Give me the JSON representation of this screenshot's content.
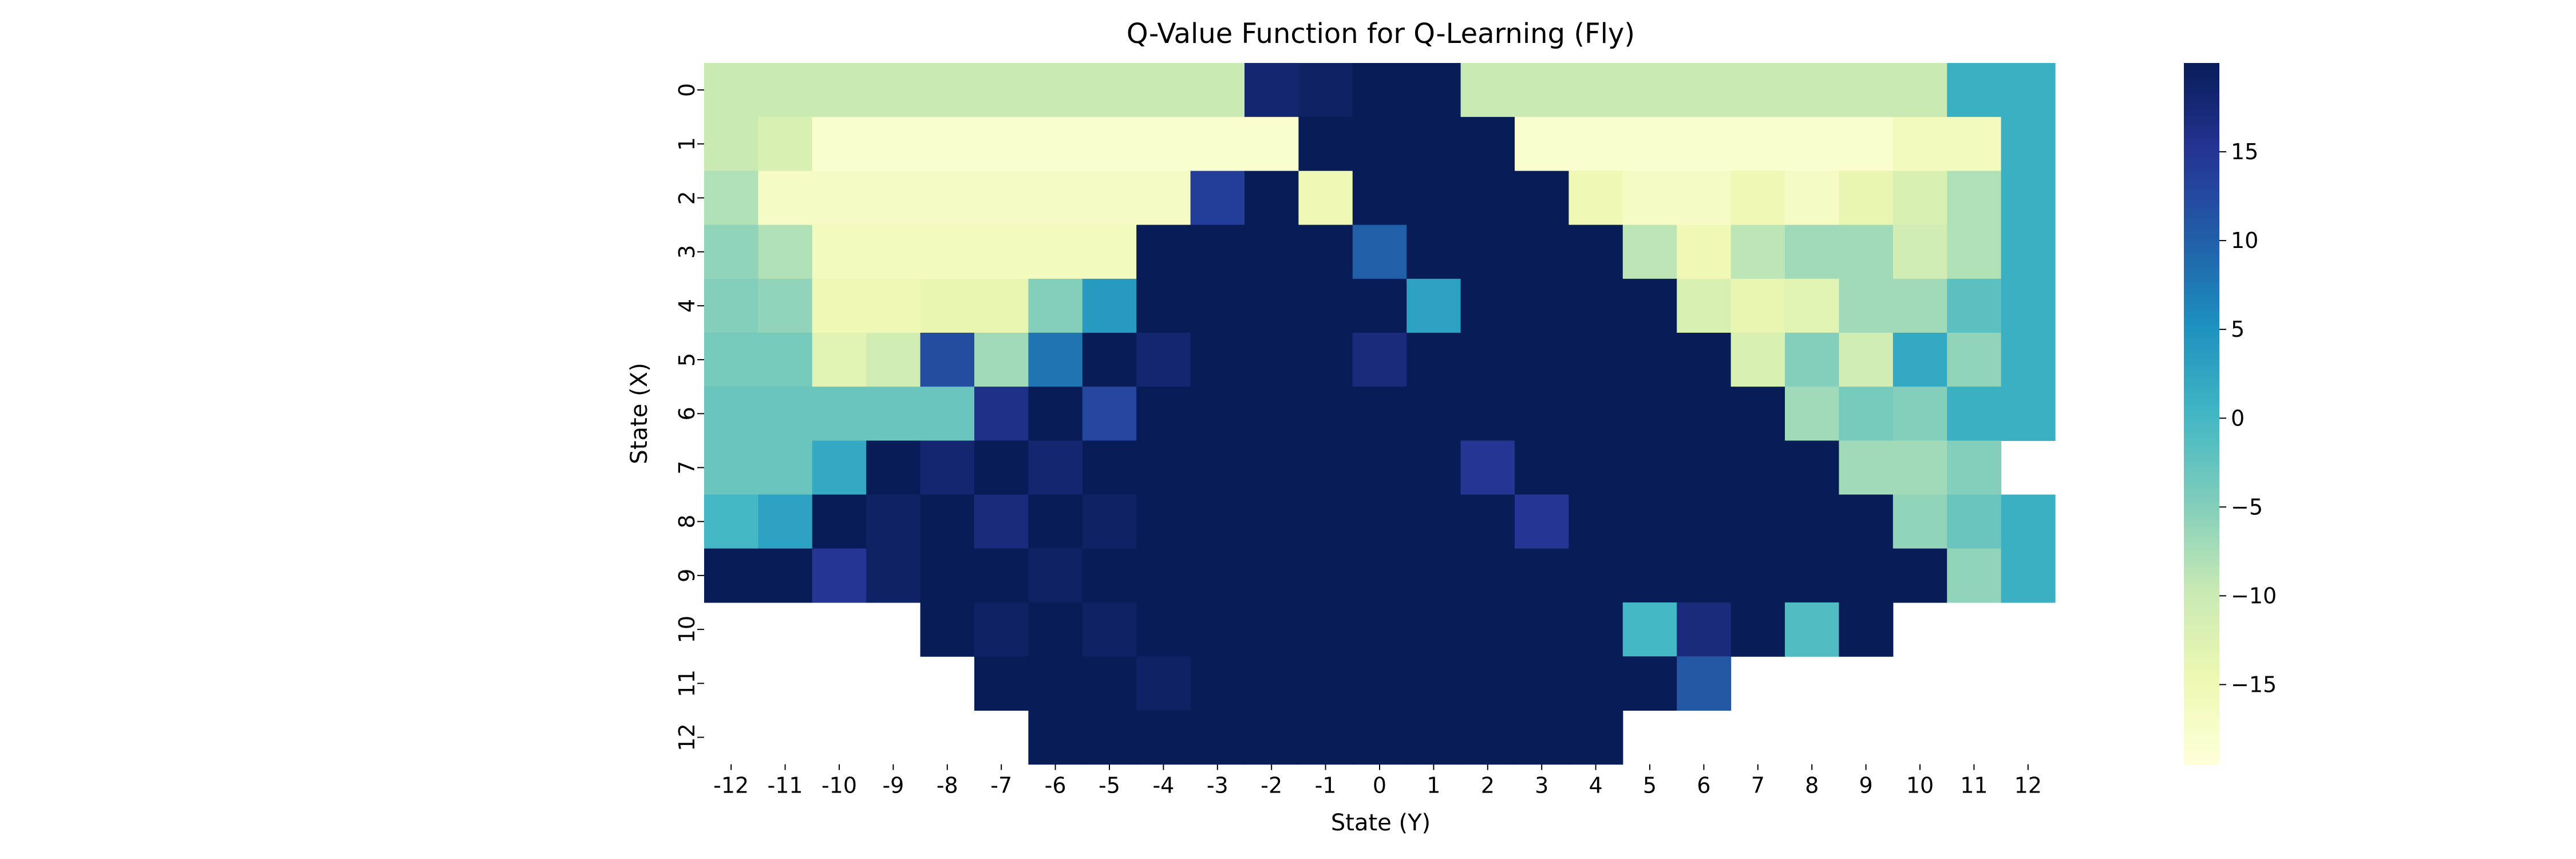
{
  "chart_data": {
    "type": "heatmap",
    "title": "Q-Value Function for Q-Learning (Fly)",
    "xlabel": "State (Y)",
    "ylabel": "State (X)",
    "x_categories": [
      "-12",
      "-11",
      "-10",
      "-9",
      "-8",
      "-7",
      "-6",
      "-5",
      "-4",
      "-3",
      "-2",
      "-1",
      "0",
      "1",
      "2",
      "3",
      "4",
      "5",
      "6",
      "7",
      "8",
      "9",
      "10",
      "11",
      "12"
    ],
    "y_categories": [
      "0",
      "1",
      "2",
      "3",
      "4",
      "5",
      "6",
      "7",
      "8",
      "9",
      "10",
      "11",
      "12"
    ],
    "colormap": "YlGnBu",
    "value_range": [
      -19.5,
      20
    ],
    "colorbar_ticks": [
      15,
      10,
      5,
      0,
      -5,
      -10,
      -15
    ],
    "colorbar_tick_labels": [
      "15",
      "10",
      "5",
      "0",
      "−5",
      "−10",
      "−15"
    ],
    "missing_color": "#ffffff",
    "values": [
      [
        -10,
        -10,
        -10,
        -10,
        -10,
        -10,
        -10,
        -10,
        -10,
        -10,
        18,
        19,
        20,
        20,
        -10,
        -10,
        -10,
        -10,
        -10,
        -10,
        -10,
        -10,
        -10,
        1,
        1
      ],
      [
        -10,
        -12,
        -18,
        -18,
        -18,
        -18,
        -18,
        -18,
        -18,
        -18,
        -18,
        20,
        20,
        20,
        20,
        -18,
        -18,
        -18,
        -18,
        -18,
        -18,
        -18,
        -16,
        -16,
        1
      ],
      [
        -8,
        -17,
        -17,
        -17,
        -17,
        -17,
        -17,
        -17,
        -17,
        14,
        20,
        -15,
        20,
        20,
        20,
        20,
        -15,
        -17,
        -17,
        -15,
        -17,
        -14,
        -12,
        -8,
        1
      ],
      [
        -6,
        -8,
        -16,
        -16,
        -16,
        -16,
        -16,
        -16,
        20,
        20,
        20,
        20,
        10,
        20,
        20,
        20,
        20,
        -9,
        -15,
        -9,
        -7,
        -7,
        -11,
        -8,
        1
      ],
      [
        -5,
        -6,
        -15,
        -15,
        -14,
        -14,
        -5,
        4,
        20,
        20,
        20,
        20,
        20,
        3,
        20,
        20,
        20,
        20,
        -12,
        -14,
        -13,
        -7,
        -7,
        -2,
        1
      ],
      [
        -4,
        -4,
        -13,
        -11,
        12,
        -7,
        8,
        20,
        18,
        20,
        20,
        20,
        17,
        20,
        20,
        20,
        20,
        20,
        20,
        -12,
        -5,
        -11,
        2,
        -6,
        1
      ],
      [
        -3,
        -3,
        -3,
        -3,
        -3,
        16,
        20,
        13,
        20,
        20,
        20,
        20,
        20,
        20,
        20,
        20,
        20,
        20,
        20,
        20,
        -7,
        -4,
        -5,
        1,
        1
      ],
      [
        -3,
        -3,
        2,
        20,
        18,
        20,
        18,
        20,
        20,
        20,
        20,
        20,
        20,
        20,
        15,
        20,
        20,
        20,
        20,
        20,
        20,
        -7,
        -7,
        -5,
        null
      ],
      [
        0,
        3,
        20,
        19,
        20,
        17,
        20,
        19,
        20,
        20,
        20,
        20,
        20,
        20,
        20,
        15,
        20,
        20,
        20,
        20,
        20,
        20,
        -6,
        -3,
        1
      ],
      [
        20,
        20,
        15,
        19,
        20,
        20,
        19,
        20,
        20,
        20,
        20,
        20,
        20,
        20,
        20,
        20,
        20,
        20,
        20,
        20,
        20,
        20,
        20,
        -6,
        1
      ],
      [
        null,
        null,
        null,
        null,
        20,
        19,
        20,
        19,
        20,
        20,
        20,
        20,
        20,
        20,
        20,
        20,
        20,
        0,
        17,
        20,
        -1,
        20,
        null,
        null,
        null
      ],
      [
        null,
        null,
        null,
        null,
        null,
        20,
        20,
        20,
        19,
        20,
        20,
        20,
        20,
        20,
        20,
        20,
        20,
        20,
        11,
        null,
        null,
        null,
        null,
        null,
        null
      ],
      [
        null,
        null,
        null,
        null,
        null,
        null,
        20,
        20,
        20,
        20,
        20,
        20,
        20,
        20,
        20,
        20,
        20,
        null,
        null,
        null,
        null,
        null,
        null,
        null,
        null
      ]
    ]
  }
}
